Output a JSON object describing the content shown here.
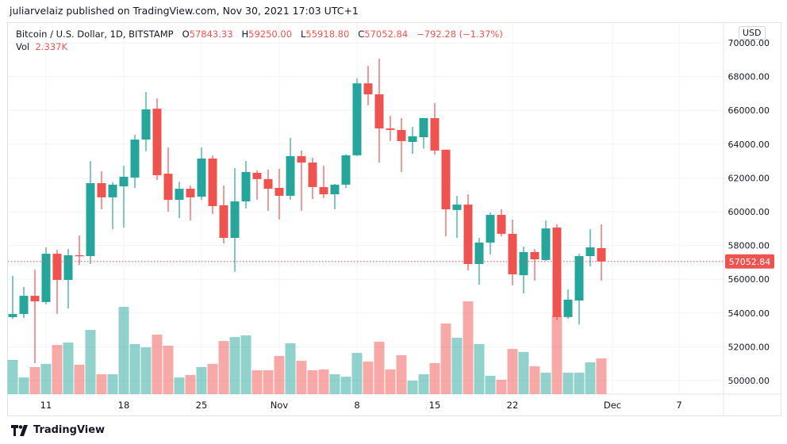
{
  "publish_line": "juliarvelaiz published on TradingView.com, Nov 30, 2021 17:03 UTC+1",
  "legend": {
    "symbol": "Bitcoin / U.S. Dollar, 1D, BITSTAMP",
    "o_label": "O",
    "o": "57843.33",
    "h_label": "H",
    "h": "59250.00",
    "l_label": "L",
    "l": "55918.80",
    "c_label": "C",
    "c": "57052.84",
    "change": "−792.28 (−1.37%)",
    "vol_label": "Vol",
    "vol": "2.337K"
  },
  "currency": "USD",
  "footer_brand": "TradingView",
  "colors": {
    "up": "#26a69a",
    "down": "#ef5350",
    "grid": "#f0f3fa"
  },
  "chart_data": {
    "type": "candlestick",
    "ylim": [
      50000,
      70000
    ],
    "y_ticks": [
      "70000.00",
      "68000.00",
      "66000.00",
      "64000.00",
      "62000.00",
      "60000.00",
      "58000.00",
      "56000.00",
      "54000.00",
      "52000.00",
      "50000.00"
    ],
    "x_ticks": [
      {
        "label": "11",
        "date": "2021-10-11"
      },
      {
        "label": "18",
        "date": "2021-10-18"
      },
      {
        "label": "25",
        "date": "2021-10-25"
      },
      {
        "label": "Nov",
        "date": "2021-11-01"
      },
      {
        "label": "8",
        "date": "2021-11-08"
      },
      {
        "label": "15",
        "date": "2021-11-15"
      },
      {
        "label": "22",
        "date": "2021-11-22"
      },
      {
        "label": "Dec",
        "date": "2021-12-01"
      },
      {
        "label": "7",
        "date": "2021-12-07"
      }
    ],
    "last_price_label": "57052.84",
    "last_price": 57052.84,
    "grid": true,
    "columns": [
      "date",
      "open",
      "high",
      "low",
      "close",
      "volume_k"
    ],
    "candles": [
      [
        "2021-10-08",
        53760,
        56200,
        53660,
        53940,
        2.24
      ],
      [
        "2021-10-09",
        53940,
        55540,
        53710,
        55020,
        1.09
      ],
      [
        "2021-10-10",
        55020,
        56570,
        51030,
        54690,
        1.77
      ],
      [
        "2021-10-11",
        54650,
        57890,
        54510,
        57510,
        1.98
      ],
      [
        "2021-10-12",
        57510,
        57750,
        53940,
        55960,
        3.22
      ],
      [
        "2021-10-13",
        55960,
        57790,
        54270,
        57420,
        3.38
      ],
      [
        "2021-10-14",
        57420,
        58590,
        56850,
        57360,
        1.92
      ],
      [
        "2021-10-15",
        57370,
        63000,
        56900,
        61690,
        4.21
      ],
      [
        "2021-10-16",
        61690,
        62390,
        60140,
        60850,
        1.3
      ],
      [
        "2021-10-17",
        60850,
        61740,
        58970,
        61600,
        1.3
      ],
      [
        "2021-10-18",
        61500,
        62720,
        59060,
        62070,
        5.72
      ],
      [
        "2021-10-19",
        62020,
        64550,
        61410,
        64270,
        3.28
      ],
      [
        "2021-10-20",
        64270,
        67090,
        63570,
        66060,
        3.07
      ],
      [
        "2021-10-21",
        66100,
        66710,
        61880,
        62160,
        3.9
      ],
      [
        "2021-10-22",
        62250,
        63800,
        60000,
        60700,
        3.17
      ],
      [
        "2021-10-23",
        60700,
        61780,
        59620,
        61360,
        1.09
      ],
      [
        "2021-10-24",
        61360,
        61550,
        59480,
        60850,
        1.25
      ],
      [
        "2021-10-25",
        60890,
        63800,
        60700,
        63150,
        1.77
      ],
      [
        "2021-10-26",
        63150,
        63330,
        59860,
        60330,
        1.98
      ],
      [
        "2021-10-27",
        60380,
        61550,
        58120,
        58450,
        3.48
      ],
      [
        "2021-10-28",
        58450,
        62580,
        56430,
        60610,
        3.74
      ],
      [
        "2021-10-29",
        60610,
        63000,
        60190,
        62350,
        3.85
      ],
      [
        "2021-10-30",
        62300,
        62440,
        60700,
        61930,
        1.56
      ],
      [
        "2021-10-31",
        61930,
        62490,
        60050,
        61360,
        1.56
      ],
      [
        "2021-11-01",
        61410,
        62540,
        59530,
        60940,
        2.5
      ],
      [
        "2021-11-02",
        60940,
        64370,
        60700,
        63290,
        3.33
      ],
      [
        "2021-11-03",
        63290,
        63620,
        60050,
        62910,
        2.18
      ],
      [
        "2021-11-04",
        62910,
        63190,
        60750,
        61460,
        1.56
      ],
      [
        "2021-11-05",
        61460,
        62720,
        60800,
        61030,
        1.61
      ],
      [
        "2021-11-06",
        61030,
        61640,
        60140,
        61600,
        1.3
      ],
      [
        "2021-11-07",
        61600,
        63400,
        61400,
        63340,
        1.14
      ],
      [
        "2021-11-08",
        63340,
        67900,
        63300,
        67600,
        2.7
      ],
      [
        "2021-11-09",
        67600,
        68640,
        66290,
        66950,
        2.13
      ],
      [
        "2021-11-10",
        66950,
        69060,
        62910,
        64930,
        3.43
      ],
      [
        "2021-11-11",
        64930,
        65680,
        64180,
        64840,
        1.61
      ],
      [
        "2021-11-12",
        64840,
        65540,
        62350,
        64180,
        2.55
      ],
      [
        "2021-11-13",
        64130,
        65020,
        63430,
        64460,
        0.88
      ],
      [
        "2021-11-14",
        64410,
        65540,
        63730,
        65540,
        1.3
      ],
      [
        "2021-11-15",
        65540,
        66430,
        63380,
        63620,
        2.03
      ],
      [
        "2021-11-16",
        63670,
        63670,
        58540,
        60140,
        4.63
      ],
      [
        "2021-11-17",
        60100,
        60940,
        58450,
        60420,
        3.69
      ],
      [
        "2021-11-18",
        60420,
        61030,
        56530,
        56900,
        6.08
      ],
      [
        "2021-11-19",
        56900,
        58450,
        55680,
        58170,
        3.28
      ],
      [
        "2021-11-20",
        58170,
        59950,
        57470,
        59810,
        1.2
      ],
      [
        "2021-11-21",
        59810,
        60140,
        58540,
        58690,
        0.94
      ],
      [
        "2021-11-22",
        58690,
        59530,
        55640,
        56290,
        2.96
      ],
      [
        "2021-11-23",
        56240,
        57930,
        55160,
        57610,
        2.76
      ],
      [
        "2021-11-24",
        57610,
        57790,
        55920,
        57180,
        1.82
      ],
      [
        "2021-11-25",
        57140,
        59480,
        57090,
        59010,
        1.4
      ],
      [
        "2021-11-26",
        59060,
        59250,
        53570,
        53760,
        5.15
      ],
      [
        "2021-11-27",
        53760,
        55400,
        53660,
        54790,
        1.4
      ],
      [
        "2021-11-28",
        54740,
        57510,
        53330,
        57370,
        1.4
      ],
      [
        "2021-11-29",
        57370,
        58970,
        56760,
        57890,
        2.08
      ],
      [
        "2021-11-30",
        57843.33,
        59250,
        55918.8,
        57052.84,
        2.337
      ]
    ]
  }
}
